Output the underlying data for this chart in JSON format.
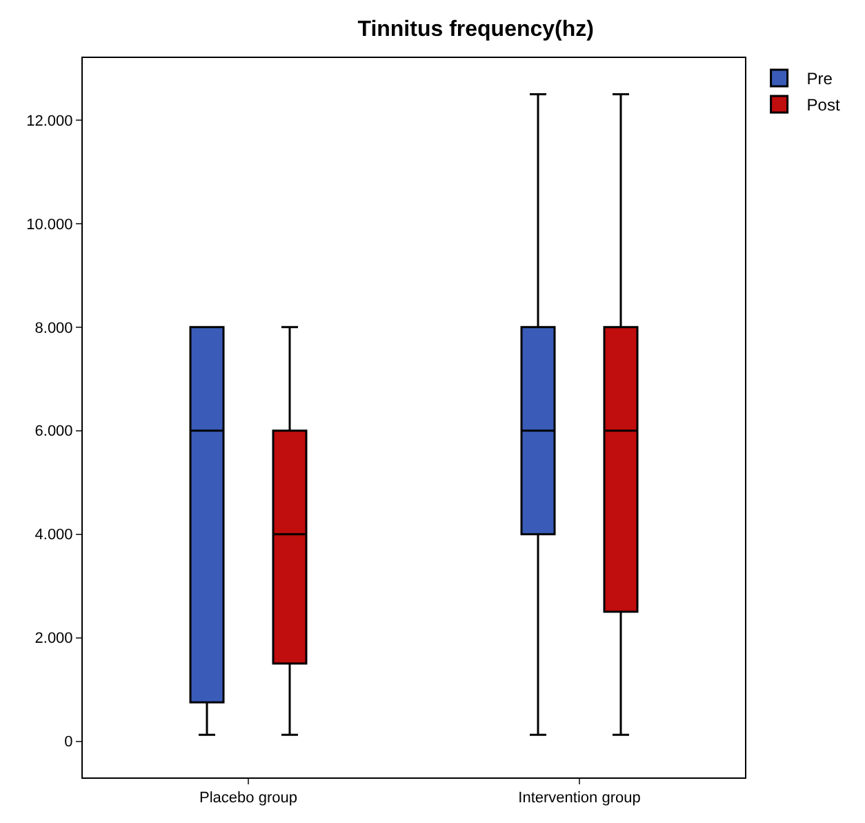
{
  "chart_data": {
    "type": "box",
    "title": "Tinnitus frequency(hz)",
    "categories": [
      "Placebo group",
      "Intervention group"
    ],
    "series": [
      {
        "name": "Pre",
        "color": "#3a5cb8",
        "boxes": [
          {
            "low": 125,
            "q1": 750,
            "median": 6000,
            "q3": 8000,
            "high": 8000
          },
          {
            "low": 125,
            "q1": 4000,
            "median": 6000,
            "q3": 8000,
            "high": 12500
          }
        ]
      },
      {
        "name": "Post",
        "color": "#c00d0d",
        "boxes": [
          {
            "low": 125,
            "q1": 1500,
            "median": 4000,
            "q3": 6000,
            "high": 8000
          },
          {
            "low": 125,
            "q1": 2500,
            "median": 6000,
            "q3": 8000,
            "high": 12500
          }
        ]
      }
    ],
    "ylim": [
      -700,
      13200
    ],
    "yticks": [
      0,
      {
        "value": 2000,
        "label": "2.000"
      },
      {
        "value": 4000,
        "label": "4.000"
      },
      {
        "value": 6000,
        "label": "6.000"
      },
      {
        "value": 8000,
        "label": "8.000"
      },
      {
        "value": 10000,
        "label": "10.000"
      },
      {
        "value": 12000,
        "label": "12.000"
      }
    ],
    "legend": "top right"
  }
}
